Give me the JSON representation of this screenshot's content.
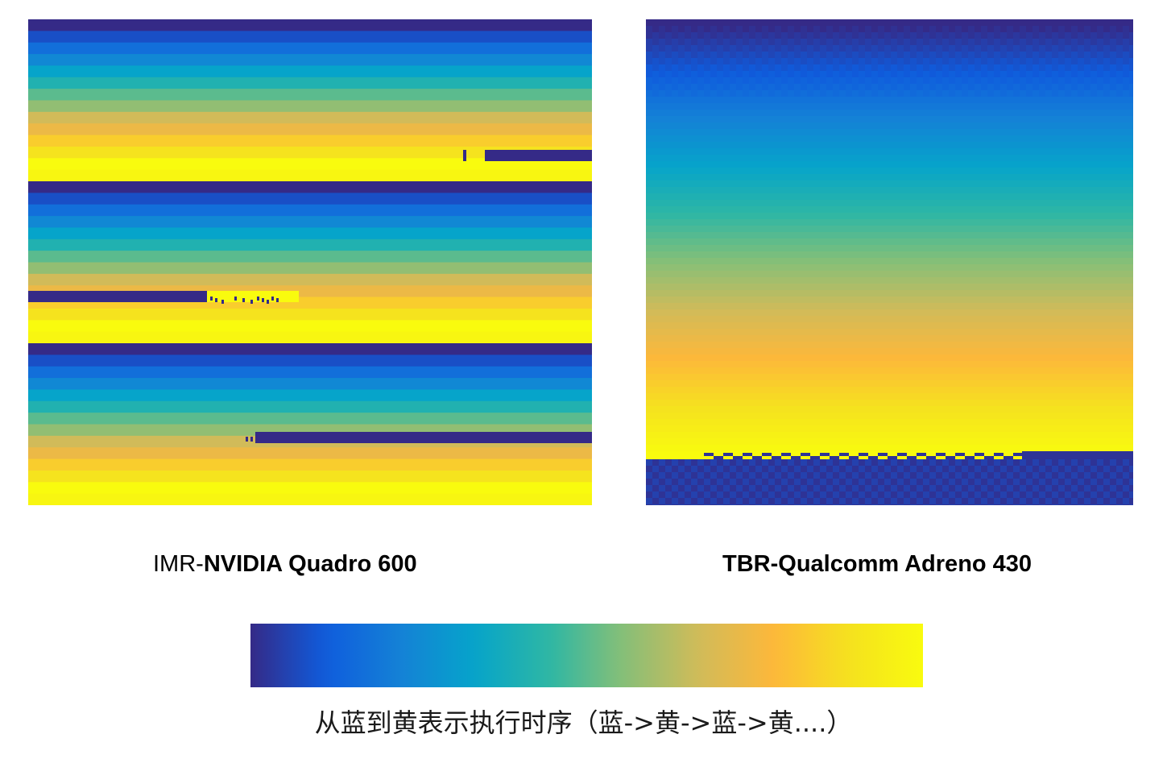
{
  "panels": [
    {
      "id": "imr",
      "prefix": "IMR-",
      "gpu": "NVIDIA Quadro 600"
    },
    {
      "id": "tbr",
      "prefix": "TBR-",
      "gpu": "Qualcomm Adreno 430"
    }
  ],
  "legend": {
    "text": "从蓝到黄表示执行时序（蓝->黄->蓝->黄....）"
  },
  "colormap": [
    "#352a87",
    "#0f5cdd",
    "#1481d6",
    "#06a4ca",
    "#2eb7a4",
    "#87bf77",
    "#d1bb59",
    "#fdb83a",
    "#f5e11f",
    "#f9fb0e"
  ],
  "chart_data": {
    "type": "heatmap",
    "colormap_order": "blue -> yellow",
    "imr_cycles": 3,
    "imr_bands_per_cycle": 7,
    "tbr_cycles": 1
  }
}
